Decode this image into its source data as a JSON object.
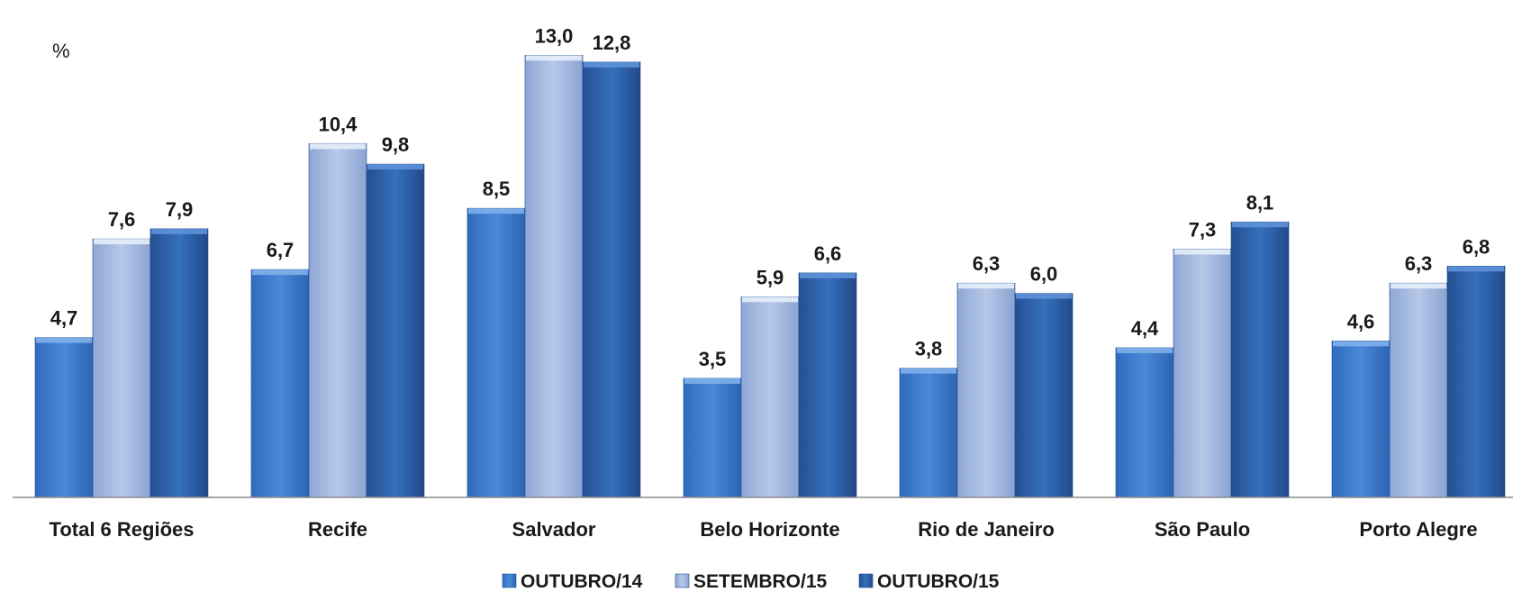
{
  "chart_data": {
    "type": "bar",
    "unit_label": "%",
    "categories": [
      "Total 6 Regiões",
      "Recife",
      "Salvador",
      "Belo Horizonte",
      "Rio de Janeiro",
      "São Paulo",
      "Porto Alegre"
    ],
    "series": [
      {
        "name": "OUTUBRO/14",
        "values": [
          4.7,
          6.7,
          8.5,
          3.5,
          3.8,
          4.4,
          4.6
        ],
        "color": "#3f7fd0"
      },
      {
        "name": "SETEMBRO/15",
        "values": [
          7.6,
          10.4,
          13.0,
          5.9,
          6.3,
          7.3,
          6.3
        ],
        "color": "#a9bde2"
      },
      {
        "name": "OUTUBRO/15",
        "values": [
          7.9,
          9.8,
          12.8,
          6.6,
          6.0,
          8.1,
          6.8
        ],
        "color": "#2f65ad"
      }
    ],
    "value_labels": [
      [
        "4,7",
        "6,7",
        "8,5",
        "3,5",
        "3,8",
        "4,4",
        "4,6"
      ],
      [
        "7,6",
        "10,4",
        "13,0",
        "5,9",
        "6,3",
        "7,3",
        "6,3"
      ],
      [
        "7,9",
        "9,8",
        "12,8",
        "6,6",
        "6,0",
        "8,1",
        "6,8"
      ]
    ],
    "ylim": [
      0,
      13.3
    ],
    "grid": false,
    "legend_position": "bottom-center"
  }
}
